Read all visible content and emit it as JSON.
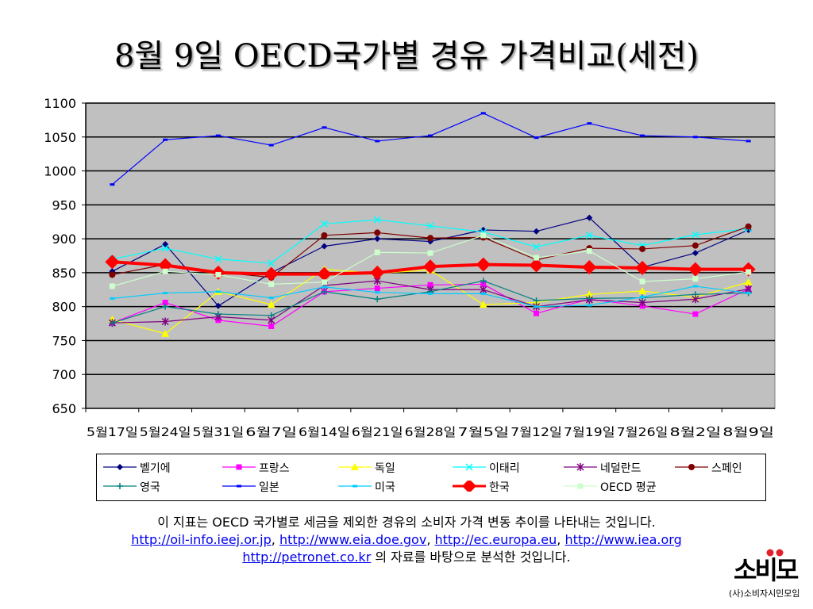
{
  "slide": {
    "title": "8월 9일 OECD국가별 경유 가격비교(세전)",
    "footnote_line1": "이 지표는 OECD 국가별로 세금을 제외한 경유의 소비자 가격 변동 추이를 나타내는 것입니다.",
    "links": [
      "http://oil-info.ieej.or.jp",
      "http://www.eia.doe.gov",
      "http://ec.europa.eu",
      "http://www.iea.org"
    ],
    "link_sep": ", ",
    "link_last": "http://petronet.co.kr",
    "footnote_line3_suffix": " 의 자료를 바탕으로 분석한 것입니다.",
    "logo_mark": "소비모",
    "logo_org": "(사)소비자시민모임"
  },
  "chart_data": {
    "type": "line",
    "title": "",
    "xlabel": "",
    "ylabel": "",
    "ylim": [
      650,
      1100
    ],
    "yticks": [
      650,
      700,
      750,
      800,
      850,
      900,
      950,
      1000,
      1050,
      1100
    ],
    "grid": true,
    "legend_position": "bottom",
    "plot_background": "#c0c0c0",
    "categories": [
      "5월17일",
      "5월24일",
      "5월31일",
      "6월7일",
      "6월14일",
      "6월21일",
      "6월28일",
      "7월5일",
      "7월12일",
      "7월19일",
      "7월26일",
      "8월2일",
      "8월9일"
    ],
    "series": [
      {
        "name": "벨기에",
        "color": "#000080",
        "marker": "diamond",
        "values": [
          852,
          892,
          801,
          850,
          889,
          900,
          896,
          913,
          911,
          931,
          858,
          879,
          913
        ]
      },
      {
        "name": "프랑스",
        "color": "#ff00ff",
        "marker": "square",
        "values": [
          776,
          806,
          780,
          771,
          822,
          827,
          832,
          833,
          790,
          811,
          801,
          789,
          826
        ]
      },
      {
        "name": "독일",
        "color": "#ffff00",
        "marker": "triangle",
        "values": [
          781,
          760,
          822,
          803,
          855,
          849,
          854,
          803,
          806,
          818,
          823,
          814,
          836
        ]
      },
      {
        "name": "이태리",
        "color": "#00ffff",
        "marker": "x",
        "values": [
          870,
          886,
          870,
          864,
          922,
          928,
          919,
          910,
          888,
          905,
          890,
          906,
          915
        ]
      },
      {
        "name": "네덜란드",
        "color": "#800080",
        "marker": "asterisk",
        "values": [
          776,
          778,
          785,
          780,
          831,
          838,
          825,
          825,
          800,
          810,
          806,
          811,
          826
        ]
      },
      {
        "name": "스페인",
        "color": "#800000",
        "marker": "circle",
        "values": [
          847,
          862,
          851,
          843,
          905,
          909,
          901,
          902,
          869,
          886,
          885,
          890,
          918
        ]
      },
      {
        "name": "영국",
        "color": "#008080",
        "marker": "plus",
        "values": [
          776,
          800,
          789,
          787,
          822,
          811,
          822,
          838,
          809,
          812,
          813,
          818,
          820
        ]
      },
      {
        "name": "일본",
        "color": "#0000ff",
        "marker": "dash",
        "values": [
          980,
          1046,
          1052,
          1038,
          1064,
          1044,
          1052,
          1085,
          1049,
          1070,
          1052,
          1050,
          1044
        ]
      },
      {
        "name": "미국",
        "color": "#00ccff",
        "marker": "dash",
        "values": [
          812,
          820,
          822,
          813,
          829,
          821,
          819,
          819,
          800,
          802,
          814,
          830,
          820
        ]
      },
      {
        "name": "한국",
        "color": "#ff0000",
        "marker": "bigdiamond",
        "width": 4,
        "values": [
          866,
          861,
          850,
          848,
          848,
          850,
          859,
          862,
          861,
          858,
          857,
          855,
          855
        ]
      },
      {
        "name": "OECD 평균",
        "color": "#ccffcc",
        "marker": "square",
        "values": [
          830,
          852,
          847,
          833,
          836,
          880,
          879,
          905,
          872,
          882,
          837,
          841,
          851
        ]
      }
    ]
  }
}
